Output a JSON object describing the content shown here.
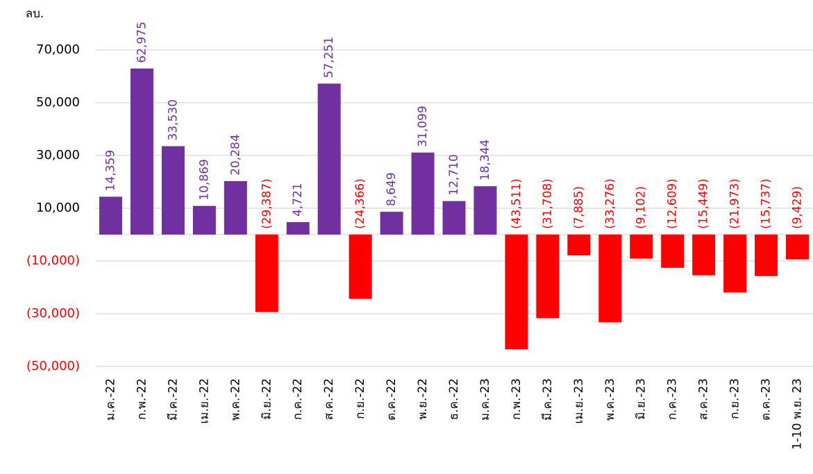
{
  "chart_data": {
    "type": "bar",
    "y_axis_label": "ลบ.",
    "categories": [
      "ม.ค.-22",
      "ก.พ.-22",
      "มี.ค.-22",
      "เม.ย.-22",
      "พ.ค.-22",
      "มิ.ย.-22",
      "ก.ค.-22",
      "ส.ค.-22",
      "ก.ย.-22",
      "ต.ค.-22",
      "พ.ย.-22",
      "ธ.ค.-22",
      "ม.ค.-23",
      "ก.พ.-23",
      "มี.ค.-23",
      "เม.ย.-23",
      "พ.ค.-23",
      "มิ.ย.-23",
      "ก.ค.-23",
      "ส.ค.-23",
      "ก.ย.-23",
      "ต.ค.-23",
      "1-10 พ.ย. 23"
    ],
    "values": [
      14359,
      62975,
      33530,
      10869,
      20284,
      -29387,
      4721,
      57251,
      -24366,
      8649,
      31099,
      12710,
      18344,
      -43511,
      -31708,
      -7885,
      -33276,
      -9102,
      -12609,
      -15449,
      -21973,
      -15737,
      -9429
    ],
    "value_labels": [
      "14,359",
      "62,975",
      "33,530",
      "10,869",
      "20,284",
      "(29,387)",
      "4,721",
      "57,251",
      "(24,366)",
      "8,649",
      "31,099",
      "12,710",
      "18,344",
      "(43,511)",
      "(31,708)",
      "(7,885)",
      "(33,276)",
      "(9,102)",
      "(12,609)",
      "(15,449)",
      "(21,973)",
      "(15,737)",
      "(9,429)"
    ],
    "color": "#7030a0",
    "negative_color": "#ff0000",
    "ylim": [
      -50000,
      80000
    ],
    "yticks": [
      {
        "value": 70000,
        "label": "70,000"
      },
      {
        "value": 50000,
        "label": "50,000"
      },
      {
        "value": 30000,
        "label": "30,000"
      },
      {
        "value": 10000,
        "label": "10,000"
      },
      {
        "value": -10000,
        "label": "(10,000)"
      },
      {
        "value": -30000,
        "label": "(30,000)"
      },
      {
        "value": -50000,
        "label": "(50,000)"
      }
    ],
    "grid": true
  }
}
